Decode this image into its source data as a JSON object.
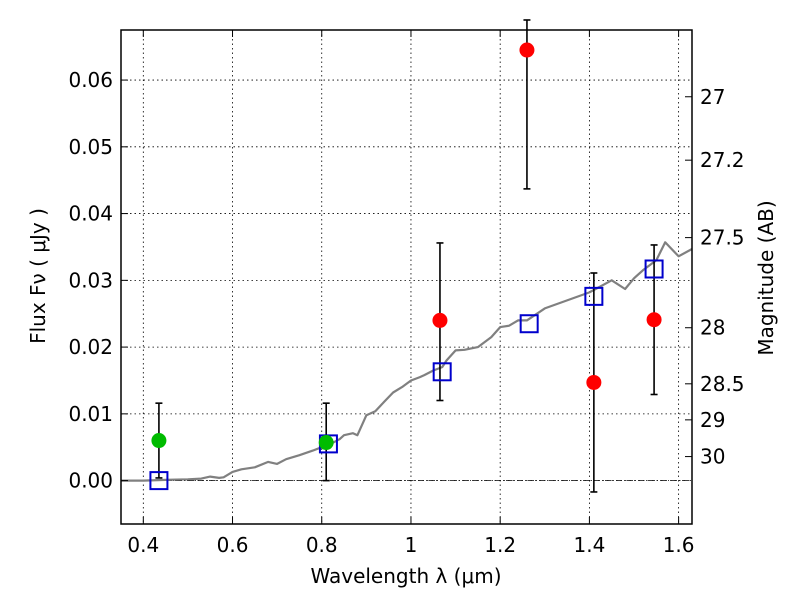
{
  "chart_data": {
    "type": "scatter",
    "xlabel": "Wavelength  λ (μm)",
    "ylabel": "Flux  Fν  ( μJy )",
    "y2label": "Magnitude (AB)",
    "xlim": [
      0.35,
      1.63
    ],
    "ylim": [
      -0.0065,
      0.0675
    ],
    "grid": true,
    "x_ticks": [
      {
        "value": 0.4,
        "label": "0.4"
      },
      {
        "value": 0.6,
        "label": "0.6"
      },
      {
        "value": 0.8,
        "label": "0.8"
      },
      {
        "value": 1.0,
        "label": "1"
      },
      {
        "value": 1.2,
        "label": "1.2"
      },
      {
        "value": 1.4,
        "label": "1.4"
      },
      {
        "value": 1.6,
        "label": "1.6"
      }
    ],
    "y_ticks": [
      {
        "value": 0.0,
        "label": "0.00"
      },
      {
        "value": 0.01,
        "label": "0.01"
      },
      {
        "value": 0.02,
        "label": "0.02"
      },
      {
        "value": 0.03,
        "label": "0.03"
      },
      {
        "value": 0.04,
        "label": "0.04"
      },
      {
        "value": 0.05,
        "label": "0.05"
      },
      {
        "value": 0.06,
        "label": "0.06"
      }
    ],
    "y2_ticks": [
      {
        "flux": 0.0575,
        "label": "27"
      },
      {
        "flux": 0.048,
        "label": "27.2"
      },
      {
        "flux": 0.0364,
        "label": "27.5"
      },
      {
        "flux": 0.0229,
        "label": "28"
      },
      {
        "flux": 0.0145,
        "label": "28.5"
      },
      {
        "flux": 0.0091,
        "label": "29"
      },
      {
        "flux": 0.0036,
        "label": "30"
      }
    ],
    "zero_line": 0.0,
    "series": [
      {
        "marker": "circle",
        "color": "#ff0000",
        "points": [
          {
            "x": 1.065,
            "y": 0.024,
            "yerr_low": 0.012,
            "yerr_high": 0.0356
          },
          {
            "x": 1.26,
            "y": 0.0645,
            "yerr_low": 0.0437,
            "yerr_high": 0.069
          },
          {
            "x": 1.41,
            "y": 0.0147,
            "yerr_low": -0.0017,
            "yerr_high": 0.0311
          },
          {
            "x": 1.545,
            "y": 0.0241,
            "yerr_low": 0.0129,
            "yerr_high": 0.0353
          }
        ]
      },
      {
        "marker": "circle",
        "color": "#00bb00",
        "points": [
          {
            "x": 0.435,
            "y": 0.006,
            "yerr_low": 0.0004,
            "yerr_high": 0.0116
          },
          {
            "x": 0.81,
            "y": 0.0057,
            "yerr_low": 0.0,
            "yerr_high": 0.0116
          }
        ]
      },
      {
        "marker": "open-square",
        "color": "#0000cc",
        "points": [
          {
            "x": 0.435,
            "y": 0.0
          },
          {
            "x": 0.815,
            "y": 0.0055
          },
          {
            "x": 1.07,
            "y": 0.0163
          },
          {
            "x": 1.265,
            "y": 0.0235
          },
          {
            "x": 1.41,
            "y": 0.0276
          },
          {
            "x": 1.545,
            "y": 0.0317
          }
        ]
      },
      {
        "type": "line",
        "color": "#808080",
        "x": [
          0.35,
          0.4,
          0.45,
          0.5,
          0.53,
          0.55,
          0.57,
          0.58,
          0.6,
          0.62,
          0.65,
          0.68,
          0.7,
          0.72,
          0.75,
          0.78,
          0.8,
          0.82,
          0.84,
          0.85,
          0.87,
          0.88,
          0.9,
          0.92,
          0.94,
          0.96,
          0.98,
          1.0,
          1.02,
          1.03,
          1.05,
          1.07,
          1.08,
          1.1,
          1.12,
          1.15,
          1.18,
          1.2,
          1.22,
          1.24,
          1.26,
          1.3,
          1.35,
          1.4,
          1.45,
          1.48,
          1.5,
          1.52,
          1.55,
          1.57,
          1.58,
          1.6,
          1.63
        ],
        "y": [
          0.0,
          0.0,
          0.0001,
          0.0002,
          0.0003,
          0.0006,
          0.0004,
          0.0005,
          0.0013,
          0.0017,
          0.002,
          0.0028,
          0.0025,
          0.0032,
          0.0038,
          0.0045,
          0.005,
          0.0055,
          0.0062,
          0.0068,
          0.0071,
          0.0068,
          0.0098,
          0.0104,
          0.0118,
          0.0132,
          0.014,
          0.015,
          0.0155,
          0.0158,
          0.0165,
          0.017,
          0.018,
          0.0195,
          0.0196,
          0.02,
          0.0215,
          0.023,
          0.0232,
          0.024,
          0.024,
          0.0258,
          0.027,
          0.0282,
          0.03,
          0.0287,
          0.0303,
          0.0315,
          0.033,
          0.0357,
          0.035,
          0.0336,
          0.0347
        ]
      }
    ]
  }
}
